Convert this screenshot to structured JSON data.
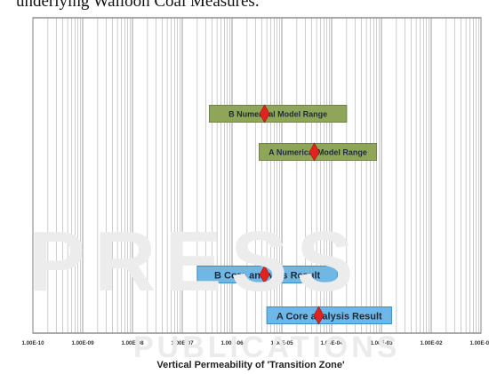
{
  "caption_fragment": "underlying Walloon Coal Measures.",
  "watermark": {
    "big": "PRESS",
    "small": "PUBLICATIONS"
  },
  "colors": {
    "numerical_bar": "#8fa65a",
    "numerical_bar_border": "#6f8444",
    "core_bar": "#6fb8e6",
    "core_bar_border": "#3a8cc4",
    "marker": "#e0231d",
    "grid": "#8a8a8a",
    "frame": "#555555"
  },
  "chart_data": {
    "type": "range_bar",
    "xscale": "log",
    "xlim": [
      1e-10,
      0.1
    ],
    "xlabel": "Vertical Permeability of 'Transition Zone'",
    "ylabel": "",
    "title": "",
    "grid": true,
    "xtick_labels": [
      "1.00E-10",
      "1.00E-09",
      "1.00E-08",
      "1.00E-07",
      "1.00E-06",
      "1.00E-05",
      "1.00E-04",
      "1.00E-03",
      "1.00E-02",
      "1.00E-01"
    ],
    "bars": [
      {
        "label": "B Numerical Model Range",
        "group": "numerical",
        "low": 3.5e-07,
        "high": 0.0002,
        "marker": 4.5e-06
      },
      {
        "label": "A Numerical Model Range",
        "group": "numerical",
        "low": 3.5e-06,
        "high": 0.0008,
        "marker": 4.5e-05
      },
      {
        "label": "B Core analysis Result",
        "group": "core",
        "low": 2e-07,
        "high": 0.00013,
        "marker": 4.5e-06
      },
      {
        "label": "A Core analysis Result",
        "group": "core",
        "low": 5e-06,
        "high": 0.0016,
        "marker": 5.5e-05
      }
    ]
  }
}
